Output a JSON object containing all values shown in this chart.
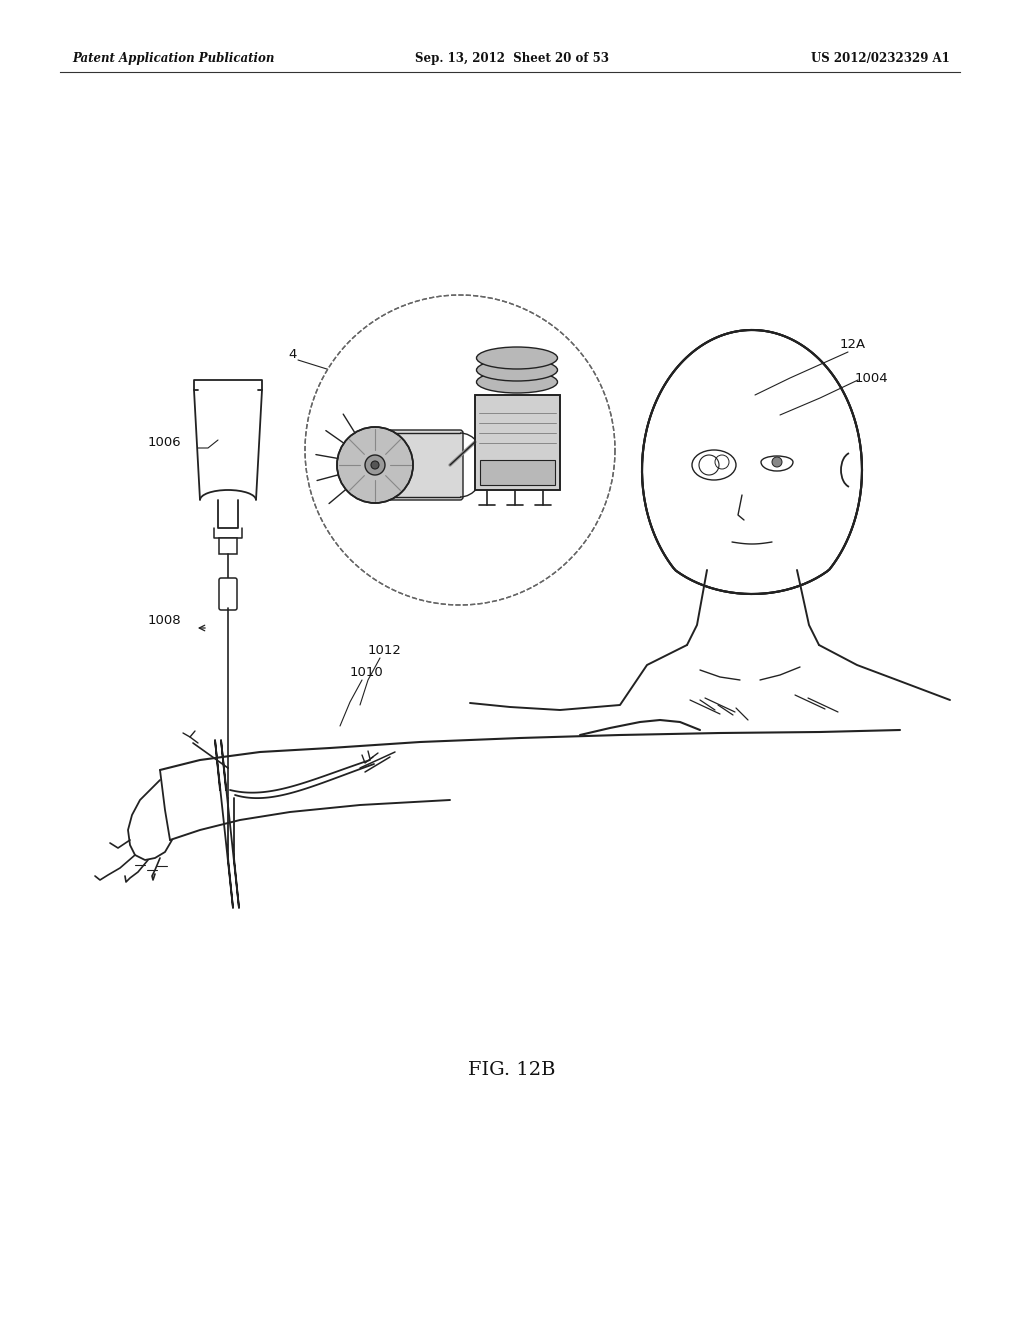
{
  "header_left": "Patent Application Publication",
  "header_center": "Sep. 13, 2012  Sheet 20 of 53",
  "header_right": "US 2012/0232329 A1",
  "figure_label": "FIG. 12B",
  "bg_color": "#ffffff",
  "line_color": "#222222"
}
